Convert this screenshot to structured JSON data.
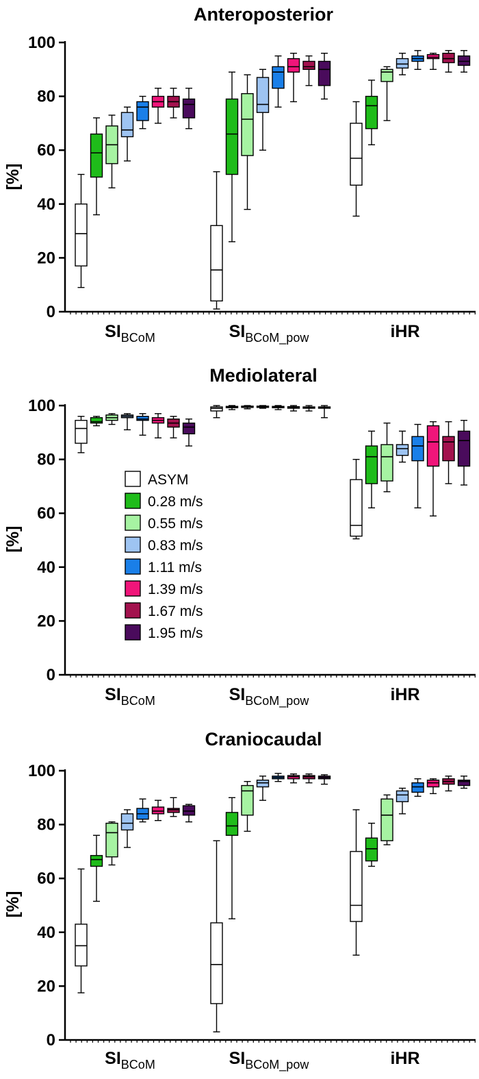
{
  "chart_data": [
    {
      "type": "boxplot",
      "title": "Anteroposterior",
      "ylabel": "[%]",
      "ylim": [
        0,
        100
      ],
      "yticks": [
        0,
        20,
        40,
        60,
        80,
        100
      ],
      "groups": [
        {
          "main": "SI",
          "sub": "BCoM"
        },
        {
          "main": "SI",
          "sub": "BCoM_pow"
        },
        {
          "main": "iHR",
          "sub": ""
        }
      ],
      "boxes": [
        [
          [
            9,
            17,
            29,
            40,
            51
          ],
          [
            36,
            50,
            59,
            66,
            72
          ],
          [
            46,
            55,
            62,
            69,
            73
          ],
          [
            56,
            65,
            67.5,
            74,
            76
          ],
          [
            68,
            71,
            76,
            78,
            80
          ],
          [
            70,
            76,
            78,
            80,
            83
          ],
          [
            72,
            76,
            78,
            80,
            83
          ],
          [
            68,
            72,
            77,
            79,
            83
          ]
        ],
        [
          [
            1,
            4,
            15.5,
            32,
            52
          ],
          [
            26,
            51,
            66,
            79,
            89
          ],
          [
            38,
            58,
            71.5,
            81,
            88
          ],
          [
            60,
            74,
            77,
            87,
            90
          ],
          [
            76,
            83,
            89,
            91,
            95
          ],
          [
            78,
            89,
            91,
            94,
            96
          ],
          [
            84,
            90,
            91,
            93,
            95
          ],
          [
            79,
            84,
            90,
            93,
            96
          ]
        ],
        [
          [
            35.5,
            47,
            57,
            70,
            78
          ],
          [
            62,
            68,
            76.5,
            80,
            86
          ],
          [
            71,
            85.5,
            89,
            90,
            91
          ],
          [
            88,
            90.5,
            92,
            94,
            96
          ],
          [
            90,
            93,
            94,
            95,
            97
          ],
          [
            90,
            94,
            94.5,
            95.5,
            96
          ],
          [
            89,
            92.5,
            94,
            96,
            97
          ],
          [
            89,
            91.5,
            93,
            95,
            97
          ]
        ]
      ]
    },
    {
      "type": "boxplot",
      "title": "Mediolateral",
      "ylabel": "[%]",
      "ylim": [
        0,
        100
      ],
      "yticks": [
        0,
        20,
        40,
        60,
        80,
        100
      ],
      "groups": [
        {
          "main": "SI",
          "sub": "BCoM"
        },
        {
          "main": "SI",
          "sub": "BCoM_pow"
        },
        {
          "main": "iHR",
          "sub": ""
        }
      ],
      "boxes": [
        [
          [
            82.5,
            86,
            91.5,
            94.5,
            96
          ],
          [
            92.5,
            93.5,
            94,
            95.5,
            96
          ],
          [
            93,
            94.5,
            95.5,
            96.5,
            97
          ],
          [
            91,
            95.5,
            96,
            96.5,
            97
          ],
          [
            89,
            94.5,
            95,
            96,
            97
          ],
          [
            88,
            93.5,
            94.5,
            95.5,
            97
          ],
          [
            88,
            92,
            93.5,
            95,
            96
          ],
          [
            85,
            89.5,
            92,
            93.5,
            95
          ]
        ],
        [
          [
            95.5,
            98,
            99,
            99.5,
            100
          ],
          [
            98.5,
            99.2,
            99.5,
            99.7,
            100
          ],
          [
            98.8,
            99.3,
            99.5,
            99.8,
            100
          ],
          [
            99,
            99.3,
            99.6,
            99.8,
            100
          ],
          [
            98.5,
            99.2,
            99.4,
            99.7,
            100
          ],
          [
            98,
            99,
            99.3,
            99.6,
            100
          ],
          [
            98,
            99,
            99.2,
            99.5,
            100
          ],
          [
            95.5,
            99,
            99.3,
            99.5,
            100
          ]
        ],
        [
          [
            50.5,
            51.5,
            55.5,
            72.5,
            80
          ],
          [
            62,
            71,
            81,
            85,
            90.5
          ],
          [
            68,
            72,
            81,
            85.5,
            93.5
          ],
          [
            79,
            81.5,
            84,
            85.5,
            90.5
          ],
          [
            62,
            79.5,
            85,
            88.5,
            93
          ],
          [
            59,
            77.5,
            86.5,
            92.5,
            94
          ],
          [
            71,
            79.5,
            86.5,
            88.5,
            94
          ],
          [
            70.5,
            77.5,
            87,
            90.5,
            94.5
          ]
        ]
      ]
    },
    {
      "type": "boxplot",
      "title": "Craniocaudal",
      "ylabel": "[%]",
      "ylim": [
        0,
        100
      ],
      "yticks": [
        0,
        20,
        40,
        60,
        80,
        100
      ],
      "groups": [
        {
          "main": "SI",
          "sub": "BCoM"
        },
        {
          "main": "SI",
          "sub": "BCoM_pow"
        },
        {
          "main": "iHR",
          "sub": ""
        }
      ],
      "boxes": [
        [
          [
            17.5,
            27.5,
            35,
            43,
            63.5
          ],
          [
            51.5,
            64.5,
            67,
            68.5,
            76
          ],
          [
            65,
            68,
            77,
            80.5,
            81
          ],
          [
            71.5,
            78,
            80.5,
            84,
            85.5
          ],
          [
            81,
            82,
            84,
            86,
            89.5
          ],
          [
            81.5,
            84,
            85,
            86.5,
            89
          ],
          [
            83,
            84.5,
            85.5,
            86,
            90
          ],
          [
            81,
            83.5,
            85,
            87,
            87.5
          ]
        ],
        [
          [
            3,
            13.5,
            28,
            43.5,
            74
          ],
          [
            45,
            76,
            79.5,
            84.5,
            90
          ],
          [
            77.5,
            83.5,
            92.5,
            94.5,
            96
          ],
          [
            89,
            94,
            95.5,
            96.5,
            98
          ],
          [
            96,
            97,
            97.5,
            98,
            99
          ],
          [
            95.5,
            97,
            97.8,
            98.2,
            98.8
          ],
          [
            95.5,
            97,
            97.8,
            98.2,
            98.8
          ],
          [
            95,
            97,
            97.5,
            98,
            98.5
          ]
        ],
        [
          [
            31.5,
            44,
            50,
            70,
            85.5
          ],
          [
            64.5,
            66.5,
            71,
            75,
            80.5
          ],
          [
            72.5,
            74,
            83.5,
            89.5,
            91
          ],
          [
            84,
            88.5,
            91,
            92.5,
            93.5
          ],
          [
            90.5,
            92,
            94,
            95.5,
            97
          ],
          [
            91.5,
            94,
            95.5,
            96.5,
            97
          ],
          [
            92.5,
            95,
            96,
            97,
            98
          ],
          [
            93.5,
            94.5,
            96,
            96.5,
            98
          ]
        ]
      ]
    }
  ],
  "legend": [
    {
      "label": "ASYM",
      "color": "#ffffff"
    },
    {
      "label": "0.28 m/s",
      "color": "#1fbc1a"
    },
    {
      "label": "0.55 m/s",
      "color": "#a6f3a2"
    },
    {
      "label": "0.83 m/s",
      "color": "#9ec4f2"
    },
    {
      "label": "1.11 m/s",
      "color": "#1a7fe8"
    },
    {
      "label": "1.39 m/s",
      "color": "#f0157a"
    },
    {
      "label": "1.67 m/s",
      "color": "#a3124e"
    },
    {
      "label": "1.95 m/s",
      "color": "#4a0b5c"
    }
  ]
}
